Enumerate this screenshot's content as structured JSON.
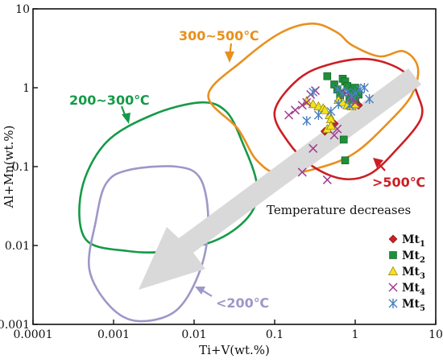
{
  "chart_data": {
    "type": "scatter",
    "title": "",
    "xlabel": "Ti+V(wt.%)",
    "ylabel": "Al+Mn(wt.%)",
    "x_scale": "log",
    "y_scale": "log",
    "xlim": [
      0.0001,
      10
    ],
    "ylim": [
      0.001,
      10
    ],
    "x_ticks": [
      0.0001,
      0.001,
      0.01,
      0.1,
      1,
      10
    ],
    "x_tick_labels": [
      "0.0001",
      "0.001",
      "0.01",
      "0.1",
      "1",
      "10"
    ],
    "y_ticks": [
      0.001,
      0.01,
      0.1,
      1,
      10
    ],
    "y_tick_labels": [
      "0.001",
      "0.01",
      "0.1",
      "1",
      "10"
    ],
    "grid": false,
    "legend_position": "bottom-right",
    "fields": [
      {
        "label": "200~300℃",
        "color": "#159a48",
        "outline": [
          [
            0.00045,
            0.012
          ],
          [
            0.0004,
            0.05
          ],
          [
            0.0008,
            0.2
          ],
          [
            0.003,
            0.45
          ],
          [
            0.012,
            0.65
          ],
          [
            0.025,
            0.5
          ],
          [
            0.04,
            0.2
          ],
          [
            0.06,
            0.06
          ],
          [
            0.05,
            0.025
          ],
          [
            0.02,
            0.012
          ],
          [
            0.005,
            0.0085
          ],
          [
            0.0015,
            0.0085
          ]
        ]
      },
      {
        "label": "300~500℃",
        "color": "#e8901e",
        "outline": [
          [
            0.015,
            0.8
          ],
          [
            0.04,
            2.2
          ],
          [
            0.12,
            5.0
          ],
          [
            0.3,
            6.5
          ],
          [
            0.6,
            5.0
          ],
          [
            0.9,
            3.5
          ],
          [
            2.0,
            2.5
          ],
          [
            4.0,
            2.9
          ],
          [
            6.0,
            1.8
          ],
          [
            5.0,
            0.8
          ],
          [
            2.5,
            0.35
          ],
          [
            1.0,
            0.15
          ],
          [
            0.4,
            0.1
          ],
          [
            0.12,
            0.08
          ],
          [
            0.06,
            0.12
          ],
          [
            0.035,
            0.3
          ]
        ]
      },
      {
        "label": ">500℃",
        "color": "#cc1f25",
        "outline": [
          [
            0.1,
            0.5
          ],
          [
            0.2,
            1.3
          ],
          [
            0.5,
            2.0
          ],
          [
            1.5,
            2.3
          ],
          [
            4.0,
            1.6
          ],
          [
            6.0,
            0.8
          ],
          [
            6.5,
            0.4
          ],
          [
            3.0,
            0.15
          ],
          [
            1.5,
            0.08
          ],
          [
            0.7,
            0.07
          ],
          [
            0.3,
            0.1
          ],
          [
            0.15,
            0.2
          ]
        ]
      },
      {
        "label": "<200℃",
        "color": "#9c98c8",
        "outline": [
          [
            0.0006,
            0.02
          ],
          [
            0.0008,
            0.06
          ],
          [
            0.0015,
            0.09
          ],
          [
            0.006,
            0.1
          ],
          [
            0.012,
            0.07
          ],
          [
            0.015,
            0.02
          ],
          [
            0.012,
            0.005
          ],
          [
            0.006,
            0.0015
          ],
          [
            0.002,
            0.0011
          ],
          [
            0.0009,
            0.0017
          ],
          [
            0.0005,
            0.005
          ]
        ]
      }
    ],
    "annotations": [
      "Temperature decreases"
    ],
    "series": [
      {
        "name": "Mt1",
        "marker": "diamond",
        "color": "#cc1f25",
        "points": [
          [
            0.42,
            0.28
          ],
          [
            0.55,
            0.35
          ],
          [
            0.8,
            0.62
          ],
          [
            1.0,
            0.68
          ],
          [
            1.1,
            0.6
          ],
          [
            0.9,
            0.73
          ],
          [
            0.7,
            0.85
          ],
          [
            0.85,
            0.95
          ]
        ]
      },
      {
        "name": "Mt2",
        "marker": "square",
        "color": "#1f8f3a",
        "points": [
          [
            0.45,
            1.4
          ],
          [
            0.55,
            1.1
          ],
          [
            0.6,
            0.95
          ],
          [
            0.7,
            1.3
          ],
          [
            0.75,
            1.2
          ],
          [
            0.8,
            1.05
          ],
          [
            0.9,
            0.9
          ],
          [
            1.0,
            1.0
          ],
          [
            0.65,
            0.8
          ],
          [
            0.85,
            0.72
          ],
          [
            1.1,
            0.82
          ],
          [
            0.72,
            0.22
          ],
          [
            0.75,
            0.12
          ],
          [
            1.0,
            0.72
          ],
          [
            0.95,
            0.62
          ]
        ]
      },
      {
        "name": "Mt3",
        "marker": "triangle",
        "color": "#f2e21b",
        "points": [
          [
            0.25,
            0.68
          ],
          [
            0.3,
            0.62
          ],
          [
            0.35,
            0.58
          ],
          [
            0.4,
            0.55
          ],
          [
            0.42,
            0.52
          ],
          [
            0.48,
            0.45
          ],
          [
            0.5,
            0.4
          ],
          [
            0.62,
            0.7
          ],
          [
            0.7,
            0.65
          ],
          [
            0.8,
            0.6
          ],
          [
            0.9,
            0.58
          ],
          [
            1.0,
            0.62
          ],
          [
            0.45,
            0.3
          ],
          [
            0.5,
            0.33
          ]
        ]
      },
      {
        "name": "Mt4",
        "marker": "x",
        "color": "#a23b8f",
        "points": [
          [
            0.15,
            0.45
          ],
          [
            0.18,
            0.52
          ],
          [
            0.22,
            0.6
          ],
          [
            0.25,
            0.65
          ],
          [
            0.28,
            0.82
          ],
          [
            0.32,
            0.92
          ],
          [
            0.6,
            0.3
          ],
          [
            0.55,
            0.25
          ],
          [
            0.3,
            0.17
          ],
          [
            0.45,
            0.068
          ],
          [
            0.22,
            0.085
          ],
          [
            0.9,
            0.75
          ],
          [
            1.0,
            0.65
          ]
        ]
      },
      {
        "name": "Mt5",
        "marker": "asterisk",
        "color": "#4a7fc0",
        "points": [
          [
            0.3,
            0.88
          ],
          [
            0.6,
            0.95
          ],
          [
            0.62,
            0.62
          ],
          [
            0.8,
            0.9
          ],
          [
            0.9,
            0.78
          ],
          [
            1.0,
            0.85
          ],
          [
            1.3,
            1.0
          ],
          [
            1.5,
            0.72
          ],
          [
            0.5,
            0.5
          ],
          [
            0.7,
            0.85
          ],
          [
            0.25,
            0.38
          ],
          [
            0.35,
            0.45
          ],
          [
            1.15,
            0.95
          ],
          [
            0.85,
            0.6
          ]
        ]
      }
    ]
  },
  "labels": {
    "field_200_300": "200~300℃",
    "field_300_500": "300~500℃",
    "field_gt500": ">500℃",
    "field_lt200": "<200℃",
    "temperature_trend": "Temperature decreases"
  },
  "legend": [
    {
      "base": "Mt",
      "sub": "1"
    },
    {
      "base": "Mt",
      "sub": "2"
    },
    {
      "base": "Mt",
      "sub": "3"
    },
    {
      "base": "Mt",
      "sub": "4"
    },
    {
      "base": "Mt",
      "sub": "5"
    }
  ]
}
